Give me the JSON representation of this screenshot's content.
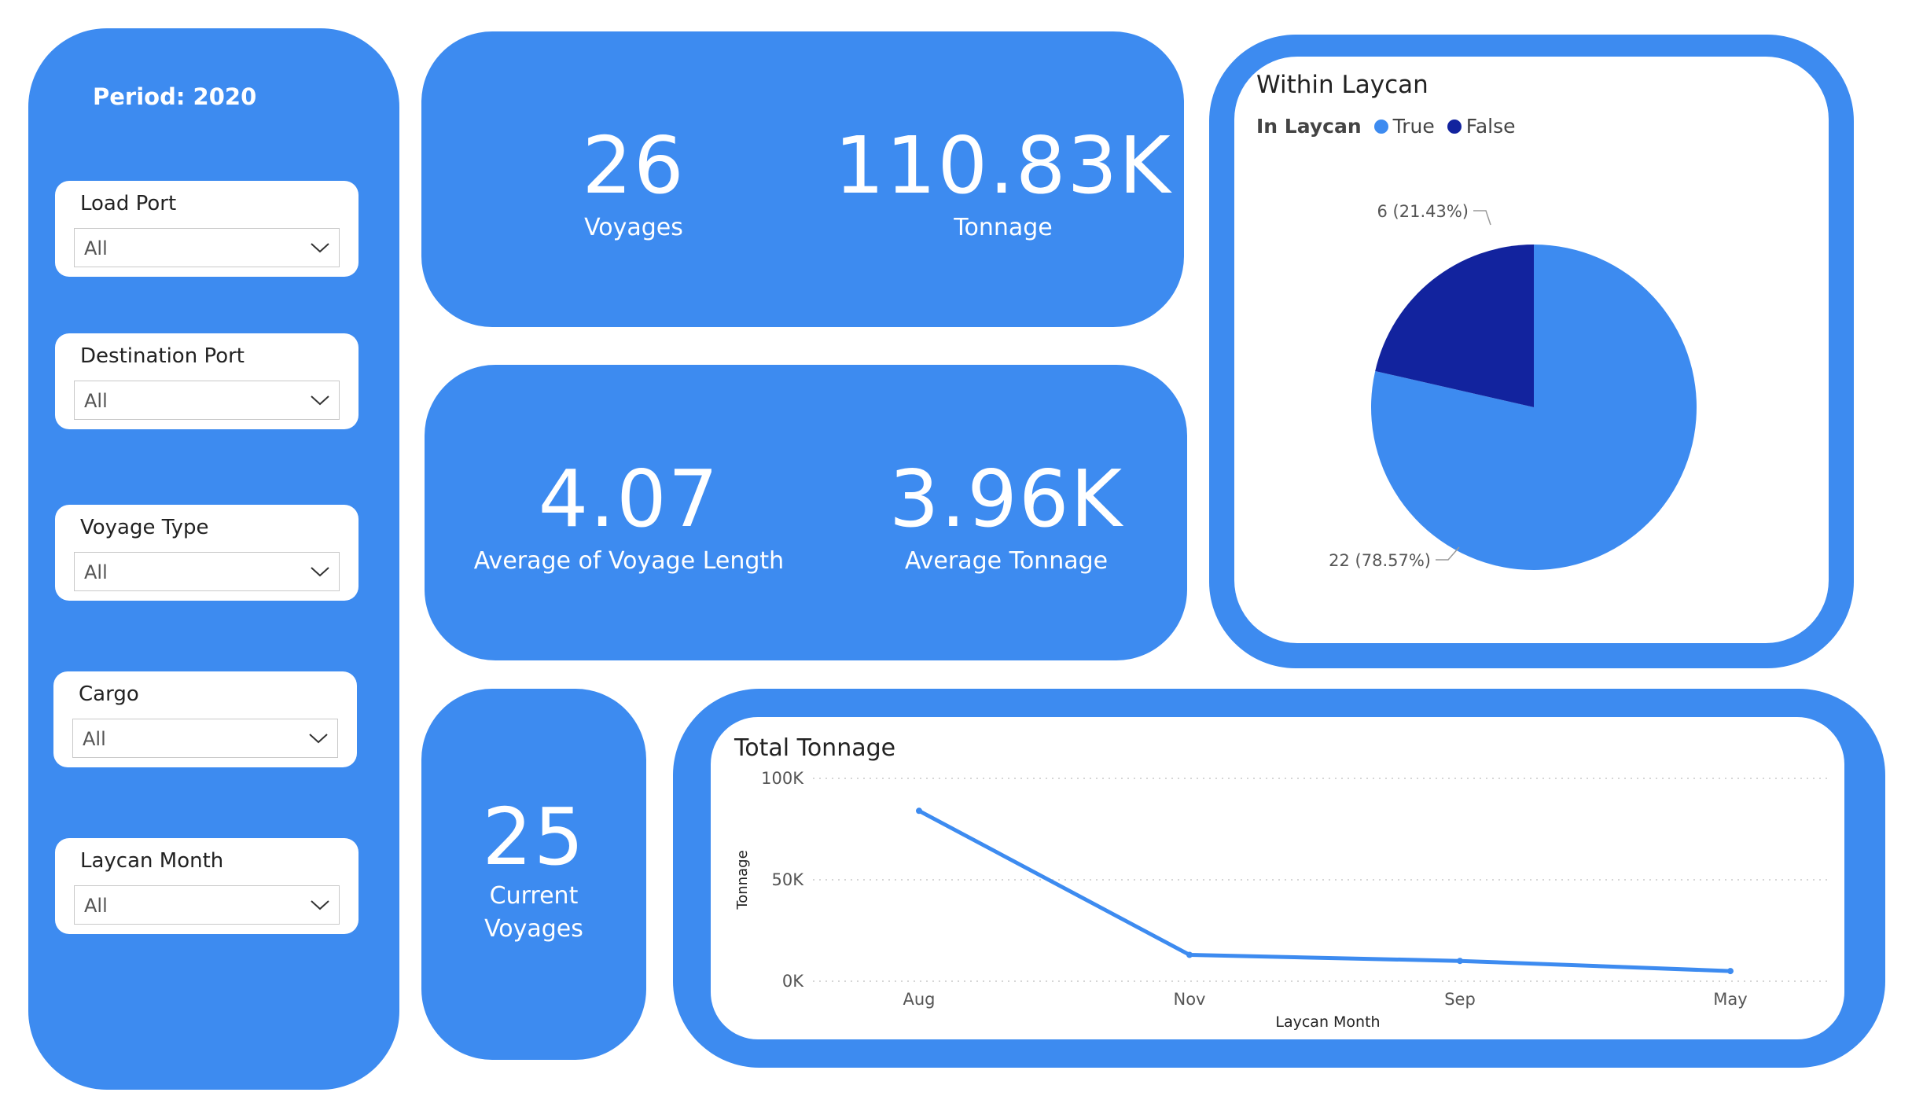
{
  "sidebar": {
    "period": "Period: 2020",
    "slicers": [
      {
        "title": "Load Port",
        "value": "All"
      },
      {
        "title": "Destination Port",
        "value": "All"
      },
      {
        "title": "Voyage Type",
        "value": "All"
      },
      {
        "title": "Cargo",
        "value": "All"
      },
      {
        "title": "Laycan Month",
        "value": "All"
      }
    ]
  },
  "kpis": {
    "voyages": {
      "value": "26",
      "label": "Voyages"
    },
    "tonnage": {
      "value": "110.83K",
      "label": "Tonnage"
    },
    "avg_length": {
      "value": "4.07",
      "label": "Average of Voyage Length"
    },
    "avg_tonnage": {
      "value": "3.96K",
      "label": "Average Tonnage"
    },
    "current": {
      "value": "25",
      "label_line1": "Current",
      "label_line2": "Voyages"
    }
  },
  "colors": {
    "panel": "#3d8bf0",
    "pie_true": "#3d8bf0",
    "pie_false": "#12239e",
    "line": "#3d8bf0"
  },
  "pie": {
    "title": "Within Laycan",
    "legend_title": "In Laycan",
    "legend": [
      "True",
      "False"
    ]
  },
  "line": {
    "title": "Total Tonnage"
  },
  "chart_data": [
    {
      "type": "pie",
      "title": "Within Laycan",
      "legend_title": "In Laycan",
      "slices": [
        {
          "name": "True",
          "value": 22,
          "label": "22 (78.57%)"
        },
        {
          "name": "False",
          "value": 6,
          "label": "6 (21.43%)"
        }
      ],
      "legend_placement": "top-left"
    },
    {
      "type": "line",
      "title": "Total Tonnage",
      "xlabel": "Laycan Month",
      "ylabel": "Tonnage",
      "categories": [
        "Aug",
        "Nov",
        "Sep",
        "May"
      ],
      "values": [
        84000,
        13000,
        10000,
        5000
      ],
      "ylim": [
        0,
        100000
      ],
      "yticks": [
        {
          "value": 0,
          "label": "0K"
        },
        {
          "value": 50000,
          "label": "50K"
        },
        {
          "value": 100000,
          "label": "100K"
        }
      ],
      "grid": true
    }
  ]
}
